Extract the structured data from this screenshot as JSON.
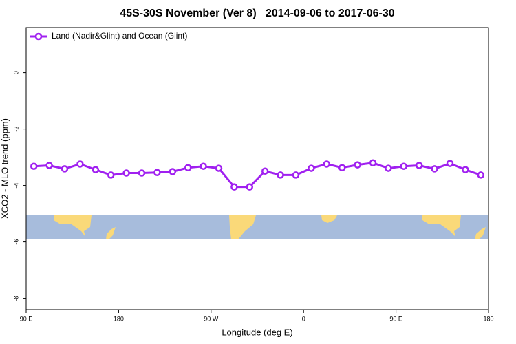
{
  "chart_data": {
    "type": "line",
    "title": "45S-30S November (Ver 8)   2014-09-06 to 2017-06-30",
    "x_label": "Longitude (deg E)",
    "y_label": "XCO2 - MLO trend (ppm)",
    "x": [
      97.5,
      112.5,
      127.5,
      142.5,
      157.5,
      172.5,
      187.5,
      202.5,
      217.5,
      232.5,
      247.5,
      262.5,
      277.5,
      292.5,
      307.5,
      322.5,
      337.5,
      352.5,
      367.5,
      382.5,
      397.5,
      412.5,
      427.5,
      442.5,
      457.5,
      472.5,
      487.5,
      502.5,
      517.5,
      532.5
    ],
    "series": [
      {
        "name": "Land (Nadir&Glint) and Ocean (Glint)",
        "color": "#a020f0",
        "values": [
          -3.32,
          -3.29,
          -3.41,
          -3.24,
          -3.44,
          -3.63,
          -3.56,
          -3.56,
          -3.54,
          -3.51,
          -3.37,
          -3.32,
          -3.39,
          -4.05,
          -4.05,
          -3.49,
          -3.63,
          -3.63,
          -3.39,
          -3.24,
          -3.37,
          -3.27,
          -3.2,
          -3.39,
          -3.32,
          -3.29,
          -3.41,
          -3.22,
          -3.44,
          -3.63
        ]
      }
    ],
    "xlim": [
      90,
      540
    ],
    "xticks": [
      {
        "value": 90,
        "label": "90 E"
      },
      180,
      {
        "value": 270,
        "label": "90 W"
      },
      {
        "value": 360,
        "label": "0"
      },
      {
        "value": 450,
        "label": "90 E"
      },
      {
        "value": 540,
        "label": "180"
      }
    ],
    "ylim": [
      -8.4,
      1.6
    ],
    "yticks": [
      0,
      -2,
      -4,
      -6,
      -8
    ],
    "legend": "upper left",
    "grid": false
  }
}
